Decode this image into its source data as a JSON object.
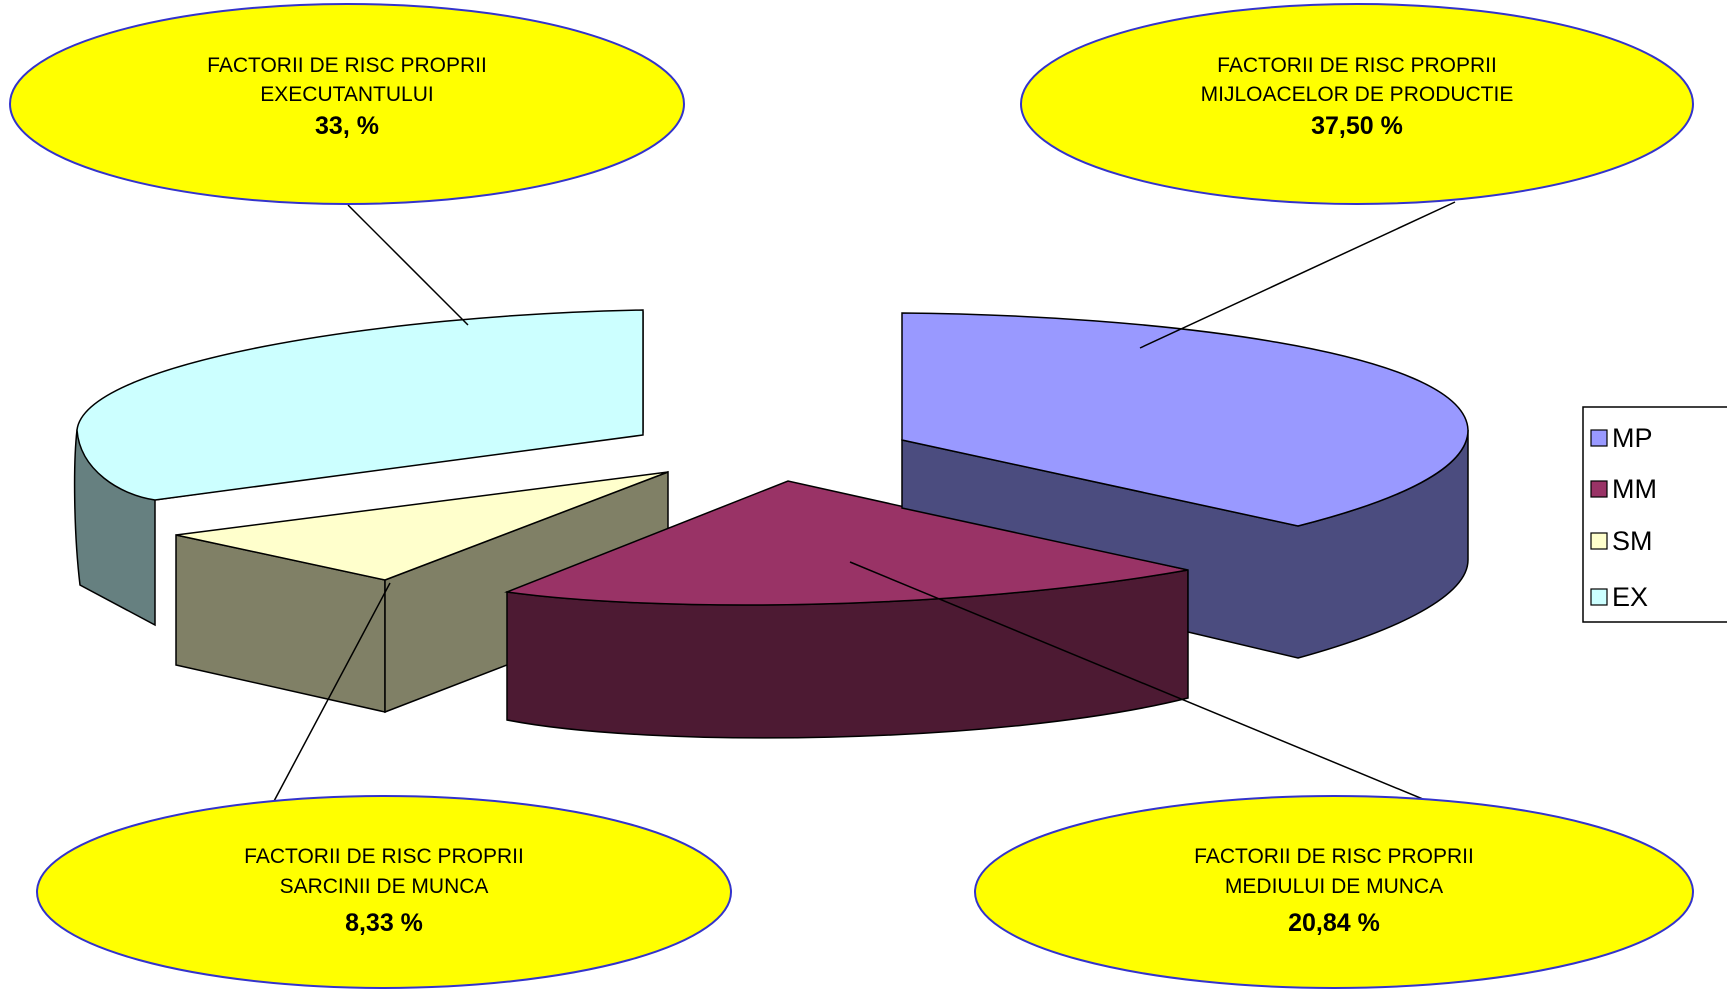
{
  "chart_data": {
    "type": "pie",
    "legend_position": "right",
    "slices": [
      {
        "key": "MP",
        "legend": "MP",
        "line1": "FACTORII DE RISC PROPRII",
        "line2": "MIJLOACELOR DE PRODUCTIE",
        "value_label": "37,50 %",
        "value": 37.5,
        "color_top": "#9999ff",
        "color_side": "#4b4c7f"
      },
      {
        "key": "MM",
        "legend": "MM",
        "line1": "FACTORII DE RISC PROPRII",
        "line2": "MEDIULUI DE MUNCA",
        "value_label": "20,84 %",
        "value": 20.84,
        "color_top": "#993366",
        "color_side": "#4d1a33"
      },
      {
        "key": "SM",
        "legend": "SM",
        "line1": "FACTORII DE RISC PROPRII",
        "line2": "SARCINII DE MUNCA",
        "value_label": "8,33 %",
        "value": 8.33,
        "color_top": "#ffffcc",
        "color_side": "#808066"
      },
      {
        "key": "EX",
        "legend": "EX",
        "line1": "FACTORII DE RISC PROPRII",
        "line2": "EXECUTANTULUI",
        "value_label": "33, %",
        "value": 33.33,
        "color_top": "#ccffff",
        "color_side": "#668080"
      }
    ]
  }
}
